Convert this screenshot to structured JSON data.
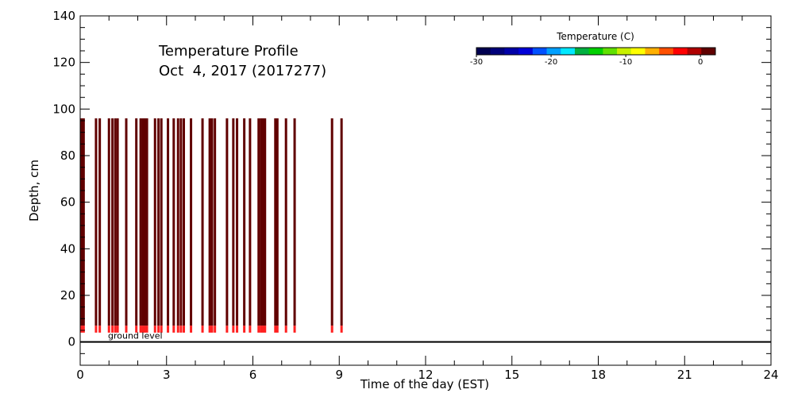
{
  "chart_data": {
    "type": "heatmap",
    "title_line1": "Temperature Profile",
    "title_line2": "Oct  4, 2017 (2017277)",
    "xlabel": "Time of the day (EST)",
    "ylabel": "Depth, cm",
    "xlim": [
      0,
      24
    ],
    "ylim": [
      -10,
      140
    ],
    "x_ticks": [
      0,
      3,
      6,
      9,
      12,
      15,
      18,
      21,
      24
    ],
    "y_ticks": [
      0,
      20,
      40,
      60,
      80,
      100,
      120,
      140
    ],
    "ground_level_label": "ground level",
    "ground_level_depth": 0,
    "colorbar": {
      "title": "Temperature (C)",
      "range": [
        -30,
        2
      ],
      "ticks": [
        -30,
        -20,
        -10,
        0
      ],
      "colors": [
        "#000050",
        "#00007a",
        "#0000a8",
        "#0000d8",
        "#0050ff",
        "#00a0ff",
        "#00e8ff",
        "#00b040",
        "#00d000",
        "#60e000",
        "#c8f000",
        "#ffff00",
        "#ffb000",
        "#ff5000",
        "#ff0000",
        "#b00000",
        "#600000"
      ]
    },
    "profile_bands": [
      {
        "depth_min": 7,
        "depth_max": 96,
        "color": "#600000",
        "approx_temp_c": 2
      },
      {
        "depth_min": 4,
        "depth_max": 7,
        "color": "#ff2020",
        "approx_temp_c": -0.5
      },
      {
        "depth_min": -10,
        "depth_max": 4,
        "color": "#ffffff",
        "approx_temp_c": null
      }
    ],
    "measurement_times": [
      0.05,
      0.12,
      0.55,
      0.68,
      1.0,
      1.12,
      1.22,
      1.3,
      1.6,
      1.95,
      2.1,
      2.18,
      2.25,
      2.32,
      2.6,
      2.72,
      2.82,
      3.05,
      3.25,
      3.4,
      3.5,
      3.6,
      3.85,
      4.25,
      4.5,
      4.58,
      4.68,
      5.1,
      5.32,
      5.45,
      5.7,
      5.9,
      6.2,
      6.28,
      6.35,
      6.42,
      6.78,
      6.85,
      7.15,
      7.45,
      8.75,
      9.08
    ]
  }
}
